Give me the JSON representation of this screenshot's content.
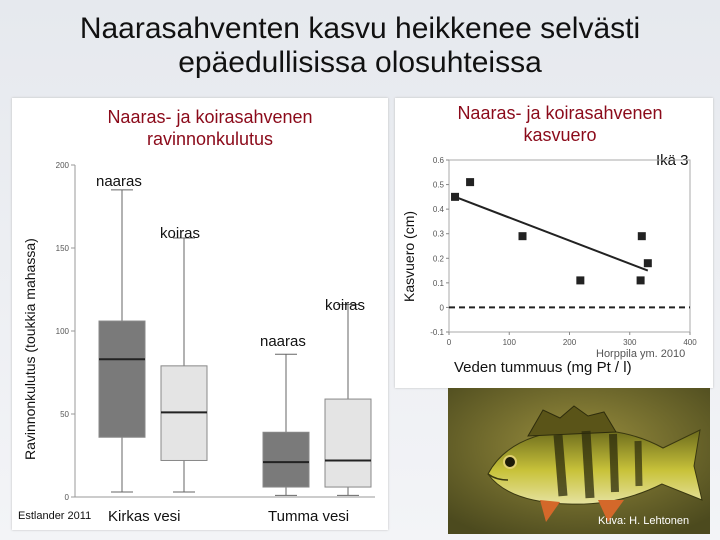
{
  "title_line1": "Naarasahventen kasvu heikkenee selvästi",
  "title_line2": "epäedullisissa olosuhteissa",
  "left": {
    "title_line1": "Naaras- ja koirasahvenen",
    "title_line2": "ravinnonkulutus",
    "ylabel": "Ravinnonkulutus (toukkia mahassa)",
    "credit": "Estlander 2011",
    "group_labels": [
      "Kirkas vesi",
      "Tumma vesi"
    ],
    "box_labels": [
      "naaras",
      "koiras",
      "naaras",
      "koiras"
    ]
  },
  "right": {
    "title_line1": "Naaras- ja koirasahvenen",
    "title_line2": "kasvuero",
    "age_label": "Ikä 3",
    "ylabel": "Kasvuero (cm)",
    "xlabel": "Veden tummuus (mg Pt / l)",
    "credit": "Horppila ym. 2010"
  },
  "photo_credit": "Kuva: H. Lehtonen",
  "colors": {
    "title_red": "#8b0a1a",
    "dark_box": "#7a7a7a",
    "light_box": "#e4e4e4"
  },
  "chart_data": [
    {
      "type": "box",
      "title": "Naaras- ja koirasahvenen ravinnonkulutus",
      "ylabel": "Ravinnonkulutus (toukkia mahassa)",
      "ylim": [
        0,
        200
      ],
      "yticks": [
        0,
        50,
        100,
        150,
        200
      ],
      "groups": [
        "Kirkas vesi",
        "Tumma vesi"
      ],
      "boxes": [
        {
          "group": "Kirkas vesi",
          "sex": "naaras",
          "whisker_low": 3,
          "q1": 36,
          "median": 83,
          "q3": 106,
          "whisker_high": 185,
          "shade": "dark"
        },
        {
          "group": "Kirkas vesi",
          "sex": "koiras",
          "whisker_low": 3,
          "q1": 22,
          "median": 51,
          "q3": 79,
          "whisker_high": 156,
          "shade": "light"
        },
        {
          "group": "Tumma vesi",
          "sex": "naaras",
          "whisker_low": 1,
          "q1": 6,
          "median": 21,
          "q3": 39,
          "whisker_high": 86,
          "shade": "dark"
        },
        {
          "group": "Tumma vesi",
          "sex": "koiras",
          "whisker_low": 1,
          "q1": 6,
          "median": 22,
          "q3": 59,
          "whisker_high": 116,
          "shade": "light"
        }
      ]
    },
    {
      "type": "scatter",
      "title": "Naaras- ja koirasahvenen kasvuero",
      "xlabel": "Veden tummuus (mg Pt / l)",
      "ylabel": "Kasvuero (cm)",
      "annotation": "Ikä 3",
      "xlim": [
        0,
        400
      ],
      "ylim": [
        -0.1,
        0.6
      ],
      "xticks": [
        0,
        100,
        200,
        300,
        400
      ],
      "yticks": [
        -0.1,
        0,
        0.1,
        0.2,
        0.3,
        0.4,
        0.5,
        0.6
      ],
      "points": [
        {
          "x": 10,
          "y": 0.45
        },
        {
          "x": 35,
          "y": 0.51
        },
        {
          "x": 122,
          "y": 0.29
        },
        {
          "x": 218,
          "y": 0.11
        },
        {
          "x": 318,
          "y": 0.11
        },
        {
          "x": 320,
          "y": 0.29
        },
        {
          "x": 330,
          "y": 0.18
        }
      ],
      "trend_line": {
        "x": [
          10,
          330
        ],
        "y": [
          0.45,
          0.15
        ]
      },
      "reference_line": {
        "y": 0,
        "style": "dashed"
      }
    }
  ]
}
